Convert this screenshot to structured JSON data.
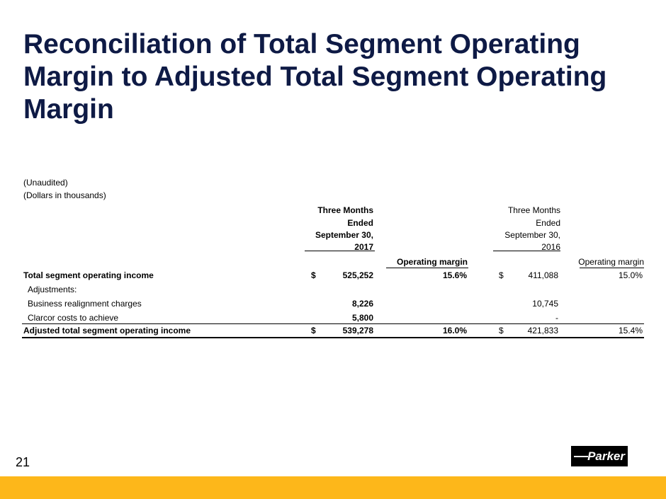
{
  "title": "Reconciliation of Total Segment Operating Margin to Adjusted Total Segment Operating Margin",
  "notes": [
    "(Unaudited)",
    "(Dollars in thousands)"
  ],
  "headers": {
    "col2017": [
      "Three Months",
      "Ended",
      "September 30,",
      "2017"
    ],
    "col2016": [
      "Three Months",
      "Ended",
      "September 30,",
      "2016"
    ],
    "margin2017": "Operating margin",
    "margin2016": "Operating margin"
  },
  "rows": [
    {
      "label": "Total segment operating income",
      "cur1": "$",
      "v2017": "525,252",
      "m2017": "15.6%",
      "cur2": "$",
      "v2016": "411,088",
      "m2016": "15.0%"
    },
    {
      "label": "Adjustments:"
    },
    {
      "label": "Business realignment charges",
      "v2017": "8,226",
      "v2016": "10,745"
    },
    {
      "label": "Clarcor costs to achieve",
      "v2017": "5,800",
      "v2016": "-"
    },
    {
      "label": "Adjusted total segment operating income",
      "cur1": "$",
      "v2017": "539,278",
      "m2017": "16.0%",
      "cur2": "$",
      "v2016": "421,833",
      "m2016": "15.4%"
    }
  ],
  "page_number": "21",
  "logo_text": "Parker",
  "colors": {
    "title": "#0e1a45",
    "band": "#fdb71a"
  }
}
